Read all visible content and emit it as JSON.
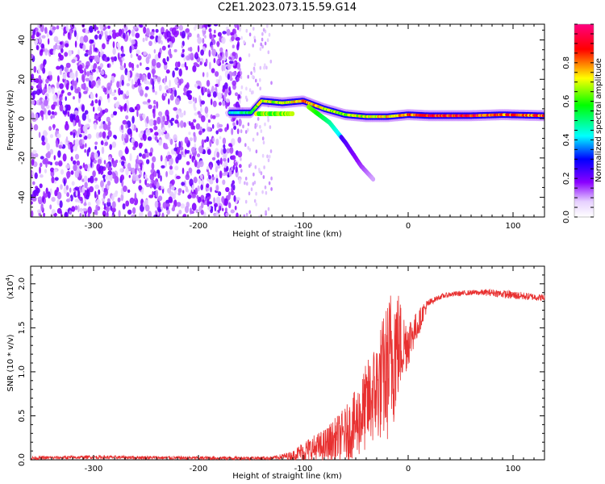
{
  "title": "C2E1.2023.073.15.59.G14",
  "chart_data": [
    {
      "type": "heatmap",
      "xlabel": "Height of straight line (km)",
      "ylabel": "Frequency (Hz)",
      "xlim": [
        -360,
        130
      ],
      "ylim": [
        -50,
        48
      ],
      "x_ticks": [
        -300,
        -200,
        -100,
        0,
        100
      ],
      "y_ticks": [
        -40,
        -20,
        0,
        20,
        40
      ],
      "colorbar": {
        "label": "Normalized spectral amplitude",
        "range": [
          0.0,
          1.0
        ],
        "ticks": [
          0.0,
          0.2,
          0.4,
          0.6,
          0.8
        ],
        "colors": [
          "#ffffff",
          "#8a00ff",
          "#0000ff",
          "#00ffff",
          "#00ff00",
          "#ffff00",
          "#ff0000",
          "#ff0080"
        ]
      },
      "features": {
        "noise_region_x": [
          -360,
          -160
        ],
        "signal_start_x": -170,
        "signal_ridge": [
          {
            "x": -170,
            "y": 3,
            "amp": 0.45
          },
          {
            "x": -150,
            "y": 3,
            "amp": 0.6
          },
          {
            "x": -140,
            "y": 9,
            "amp": 0.75
          },
          {
            "x": -120,
            "y": 8,
            "amp": 0.7
          },
          {
            "x": -100,
            "y": 9,
            "amp": 0.85
          },
          {
            "x": -80,
            "y": 5,
            "amp": 0.75
          },
          {
            "x": -60,
            "y": 2,
            "amp": 0.7
          },
          {
            "x": -40,
            "y": 1,
            "amp": 0.75
          },
          {
            "x": -20,
            "y": 1,
            "amp": 0.8
          },
          {
            "x": 0,
            "y": 2,
            "amp": 0.85
          },
          {
            "x": 20,
            "y": 1.5,
            "amp": 0.95
          },
          {
            "x": 60,
            "y": 1.5,
            "amp": 0.95
          },
          {
            "x": 90,
            "y": 2,
            "amp": 0.9
          },
          {
            "x": 130,
            "y": 1.5,
            "amp": 0.9
          }
        ],
        "descending_branch": [
          {
            "x": -95,
            "y": 6
          },
          {
            "x": -75,
            "y": -2
          },
          {
            "x": -60,
            "y": -12
          },
          {
            "x": -45,
            "y": -24
          },
          {
            "x": -33,
            "y": -31
          }
        ]
      }
    },
    {
      "type": "line",
      "xlabel": "Height of straight line (km)",
      "ylabel": "SNR (10 * v/v)",
      "yscale_label": "(x10",
      "yscale_exp": "4",
      "yscale_close": ")",
      "xlim": [
        -360,
        130
      ],
      "ylim": [
        0,
        2.2
      ],
      "x_ticks": [
        -300,
        -200,
        -100,
        0,
        100
      ],
      "y_ticks": [
        0.0,
        0.5,
        1.0,
        1.5,
        2.0
      ],
      "series": [
        {
          "color": "#e83030",
          "x": [
            -360,
            -300,
            -200,
            -130,
            -110,
            -100,
            -80,
            -60,
            -50,
            -40,
            -30,
            -20,
            -15,
            -12,
            -5,
            0,
            5,
            10,
            15,
            20,
            25,
            30,
            40,
            60,
            80,
            100,
            120,
            130
          ],
          "y": [
            0.02,
            0.03,
            0.02,
            0.02,
            0.05,
            0.1,
            0.15,
            0.3,
            0.4,
            0.6,
            0.8,
            1.0,
            1.2,
            1.3,
            1.3,
            1.35,
            1.45,
            1.55,
            1.7,
            1.78,
            1.82,
            1.85,
            1.88,
            1.9,
            1.9,
            1.87,
            1.85,
            1.84
          ],
          "spread": [
            0.02,
            0.02,
            0.02,
            0.02,
            0.05,
            0.12,
            0.2,
            0.3,
            0.4,
            0.5,
            0.6,
            0.8,
            0.9,
            0.8,
            0.4,
            0.3,
            0.2,
            0.15,
            0.1,
            0.05,
            0.03,
            0.03,
            0.03,
            0.03,
            0.04,
            0.05,
            0.04,
            0.04
          ]
        }
      ]
    }
  ]
}
